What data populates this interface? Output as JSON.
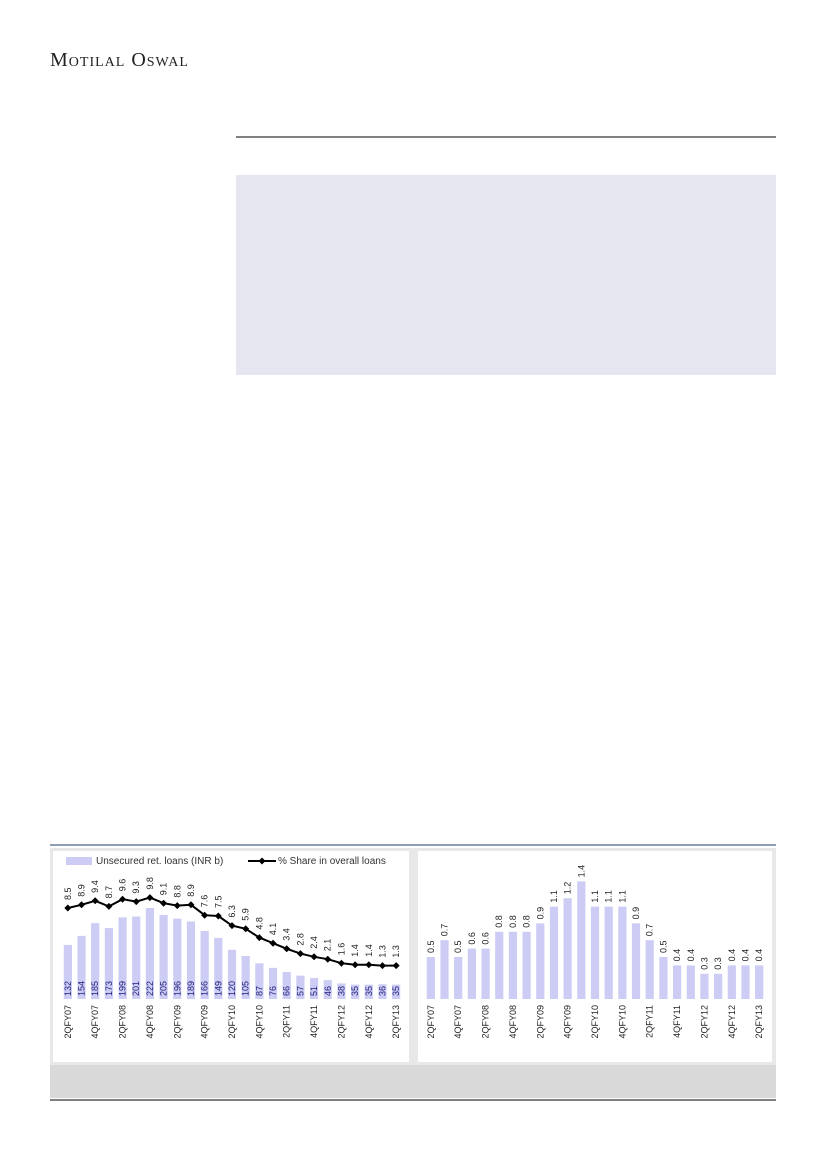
{
  "header": {
    "brand": "Motilal Oswal"
  },
  "chart_data": [
    {
      "type": "combo",
      "categories": [
        "2QFY07",
        null,
        "4QFY07",
        null,
        "2QFY08",
        null,
        "4QFY08",
        null,
        "2QFY09",
        null,
        "4QFY09",
        null,
        "2QFY10",
        null,
        "4QFY10",
        null,
        "2QFY11",
        null,
        "4QFY11",
        null,
        "2QFY12",
        null,
        "4QFY12",
        null,
        "2QFY13"
      ],
      "series": [
        {
          "name": "Unsecured ret. loans (INR b)",
          "type": "bar",
          "color": "#ccccf5",
          "values": [
            132,
            154,
            185,
            173,
            199,
            201,
            222,
            205,
            196,
            189,
            166,
            149,
            120,
            105,
            87,
            76,
            66,
            57,
            51,
            46,
            38,
            35,
            35,
            36,
            35
          ]
        },
        {
          "name": "% Share in overall loans",
          "type": "line",
          "color": "#000000",
          "axis": "y2",
          "values": [
            8.5,
            8.9,
            9.4,
            8.7,
            9.6,
            9.3,
            9.8,
            9.1,
            8.8,
            8.9,
            7.6,
            7.5,
            6.3,
            5.9,
            4.8,
            4.1,
            3.4,
            2.8,
            2.4,
            2.1,
            1.6,
            1.4,
            1.4,
            1.3,
            1.3
          ]
        }
      ]
    },
    {
      "type": "bar",
      "categories": [
        "2QFY07",
        null,
        "4QFY07",
        null,
        "2QFY08",
        null,
        "4QFY08",
        null,
        "2QFY09",
        null,
        "4QFY09",
        null,
        "2QFY10",
        null,
        "4QFY10",
        null,
        "2QFY11",
        null,
        "4QFY11",
        null,
        "2QFY12",
        null,
        "4QFY12",
        null,
        "2QFY13"
      ],
      "color": "#ccccf5",
      "values": [
        0.5,
        0.7,
        0.5,
        0.6,
        0.6,
        0.8,
        0.8,
        0.8,
        0.9,
        1.1,
        1.2,
        1.4,
        1.1,
        1.1,
        1.1,
        0.9,
        0.7,
        0.5,
        0.4,
        0.4,
        0.3,
        0.3,
        0.4,
        0.4,
        0.4
      ]
    }
  ]
}
